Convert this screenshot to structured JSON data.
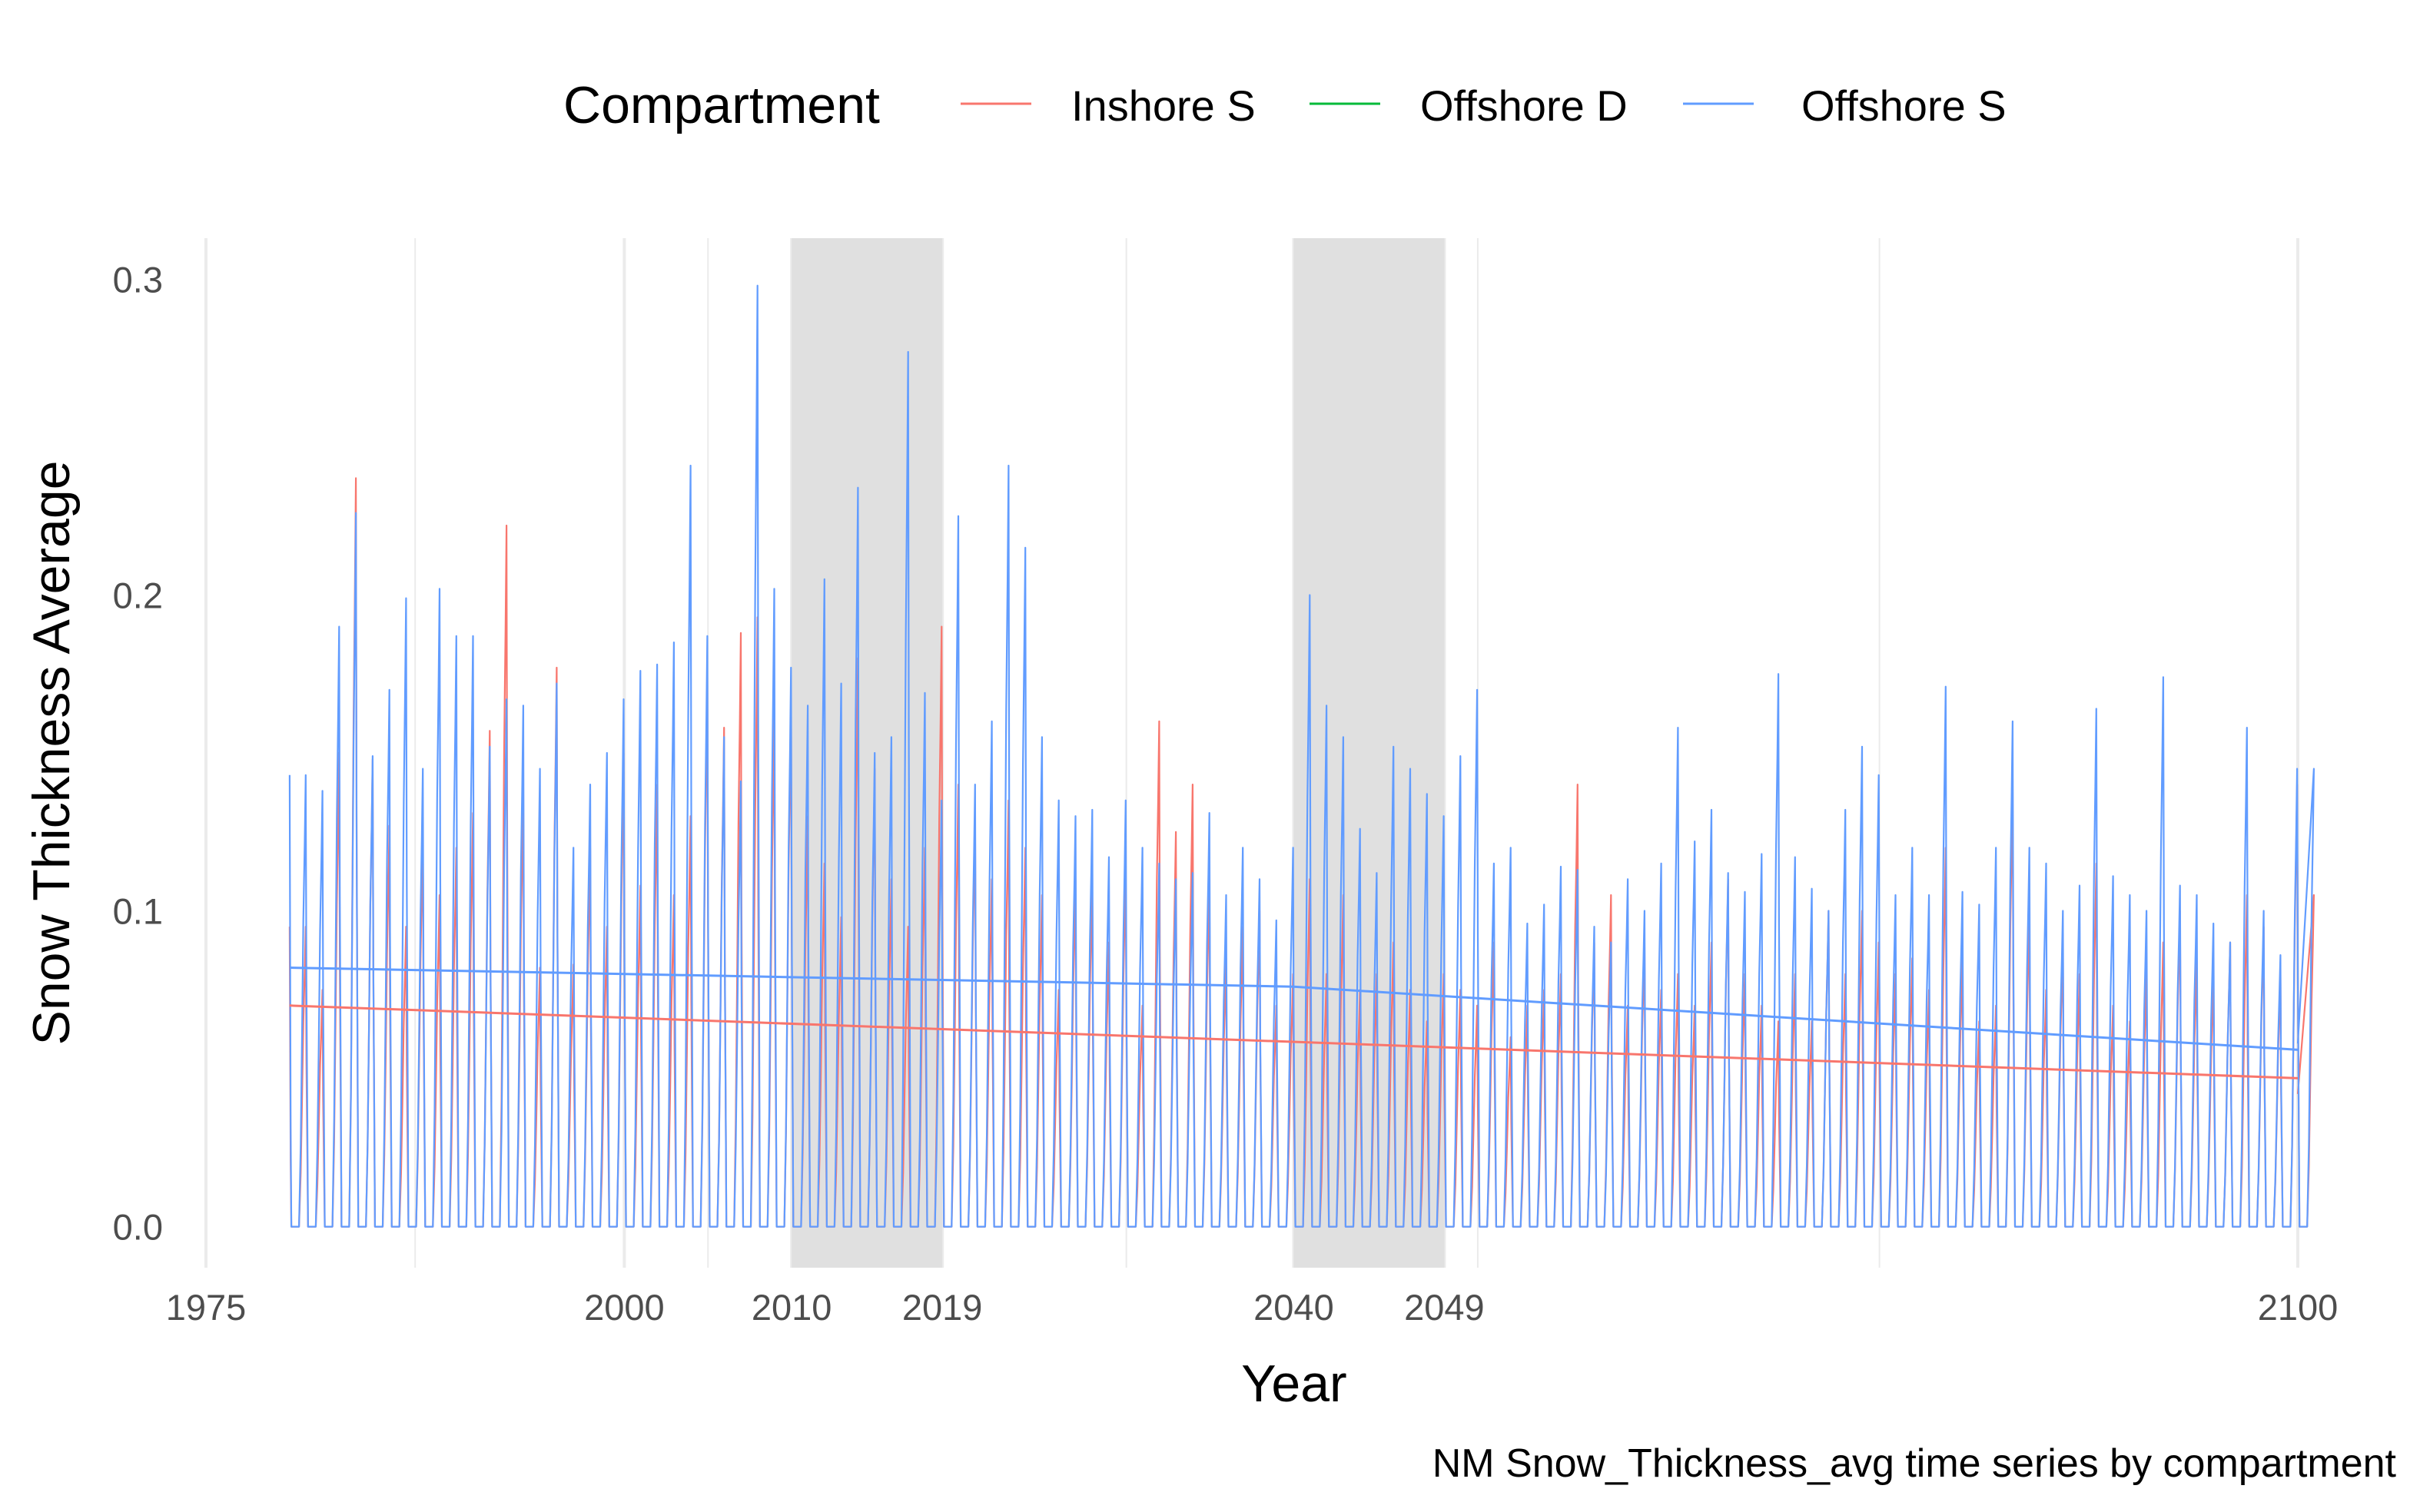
{
  "chart_data": {
    "type": "line",
    "caption": "NM Snow_Thickness_avg time series by compartment",
    "xlabel": "Year",
    "ylabel": "Snow Thickness Average",
    "xlim": [
      1975,
      2100
    ],
    "ylim": [
      -0.013,
      0.313
    ],
    "x_ticks": [
      1975,
      2000,
      2010,
      2019,
      2040,
      2049,
      2100
    ],
    "x_tick_labels": [
      "1975",
      "2000",
      "2010",
      "2019",
      "2040",
      "2049",
      "2100"
    ],
    "x_minor_gridlines": [
      1987.5,
      2005,
      2030,
      2051,
      2075
    ],
    "y_ticks": [
      0.0,
      0.1,
      0.2,
      0.3
    ],
    "y_tick_labels": [
      "0.0",
      "0.1",
      "0.2",
      "0.3"
    ],
    "shaded_periods": [
      [
        2010,
        2019
      ],
      [
        2040,
        2049
      ]
    ],
    "legend": {
      "title": "Compartment",
      "position": "top",
      "entries": [
        {
          "label": "Inshore S",
          "color": "#F8766D"
        },
        {
          "label": "Offshore D",
          "color": "#00BA38"
        },
        {
          "label": "Offshore S",
          "color": "#619CFF"
        }
      ]
    },
    "series": [
      {
        "name": "Inshore S",
        "color": "#F8766D",
        "start_year": 1980,
        "end_year": 2100,
        "annual_peaks": [
          0.095,
          0.075,
          0.15,
          0.237,
          0.148,
          0.127,
          0.095,
          0.125,
          0.105,
          0.12,
          0.131,
          0.157,
          0.222,
          0.138,
          0.082,
          0.177,
          0.083,
          0.12,
          0.095,
          0.15,
          0.108,
          0.14,
          0.105,
          0.13,
          0.175,
          0.158,
          0.188,
          0.193,
          0.164,
          0.167,
          0.13,
          0.115,
          0.098,
          0.18,
          0.145,
          0.11,
          0.095,
          0.12,
          0.19,
          0.14,
          0.13,
          0.11,
          0.135,
          0.12,
          0.105,
          0.075,
          0.11,
          0.11,
          0.09,
          0.115,
          0.07,
          0.16,
          0.125,
          0.14,
          0.11,
          0.085,
          0.095,
          0.1,
          0.07,
          0.08,
          0.11,
          0.08,
          0.105,
          0.075,
          0.08,
          0.09,
          0.075,
          0.065,
          0.08,
          0.075,
          0.07,
          0.09,
          0.06,
          0.07,
          0.075,
          0.08,
          0.14,
          0.09,
          0.105,
          0.07,
          0.09,
          0.075,
          0.08,
          0.07,
          0.09,
          0.11,
          0.08,
          0.07,
          0.065,
          0.08,
          0.065,
          0.1,
          0.08,
          0.1,
          0.09,
          0.08,
          0.085,
          0.075,
          0.12,
          0.085,
          0.065,
          0.07,
          0.14,
          0.1,
          0.075,
          0.09,
          0.08,
          0.115,
          0.07,
          0.065,
          0.08,
          0.09,
          0.1,
          0.085,
          0.08,
          0.09,
          0.105,
          0.095,
          0.08,
          0.14,
          0.105
        ],
        "trend": [
          [
            1980,
            0.07
          ],
          [
            2100,
            0.047
          ]
        ]
      },
      {
        "name": "Offshore D",
        "color": "#00BA38",
        "annual_peaks": [],
        "trend": []
      },
      {
        "name": "Offshore S",
        "color": "#619CFF",
        "start_year": 1980,
        "end_year": 2100,
        "annual_peaks": [
          0.143,
          0.138,
          0.19,
          0.226,
          0.149,
          0.17,
          0.199,
          0.145,
          0.202,
          0.187,
          0.187,
          0.152,
          0.167,
          0.165,
          0.145,
          0.172,
          0.12,
          0.14,
          0.15,
          0.167,
          0.176,
          0.178,
          0.185,
          0.241,
          0.187,
          0.155,
          0.141,
          0.298,
          0.202,
          0.177,
          0.165,
          0.205,
          0.172,
          0.234,
          0.15,
          0.155,
          0.277,
          0.169,
          0.135,
          0.225,
          0.14,
          0.16,
          0.241,
          0.215,
          0.155,
          0.135,
          0.13,
          0.132,
          0.117,
          0.135,
          0.12,
          0.115,
          0.11,
          0.112,
          0.131,
          0.105,
          0.12,
          0.11,
          0.097,
          0.12,
          0.2,
          0.165,
          0.155,
          0.126,
          0.112,
          0.152,
          0.145,
          0.137,
          0.13,
          0.149,
          0.17,
          0.115,
          0.12,
          0.096,
          0.102,
          0.114,
          0.113,
          0.095,
          0.09,
          0.11,
          0.1,
          0.115,
          0.158,
          0.122,
          0.132,
          0.112,
          0.106,
          0.118,
          0.175,
          0.117,
          0.107,
          0.1,
          0.132,
          0.152,
          0.143,
          0.105,
          0.12,
          0.105,
          0.171,
          0.106,
          0.102,
          0.12,
          0.16,
          0.12,
          0.115,
          0.1,
          0.108,
          0.164,
          0.111,
          0.105,
          0.1,
          0.174,
          0.108,
          0.105,
          0.096,
          0.09,
          0.158,
          0.1,
          0.086,
          0.145,
          0.145
        ],
        "trend": [
          [
            1980,
            0.082
          ],
          [
            2040,
            0.076
          ],
          [
            2100,
            0.056
          ]
        ]
      }
    ]
  }
}
